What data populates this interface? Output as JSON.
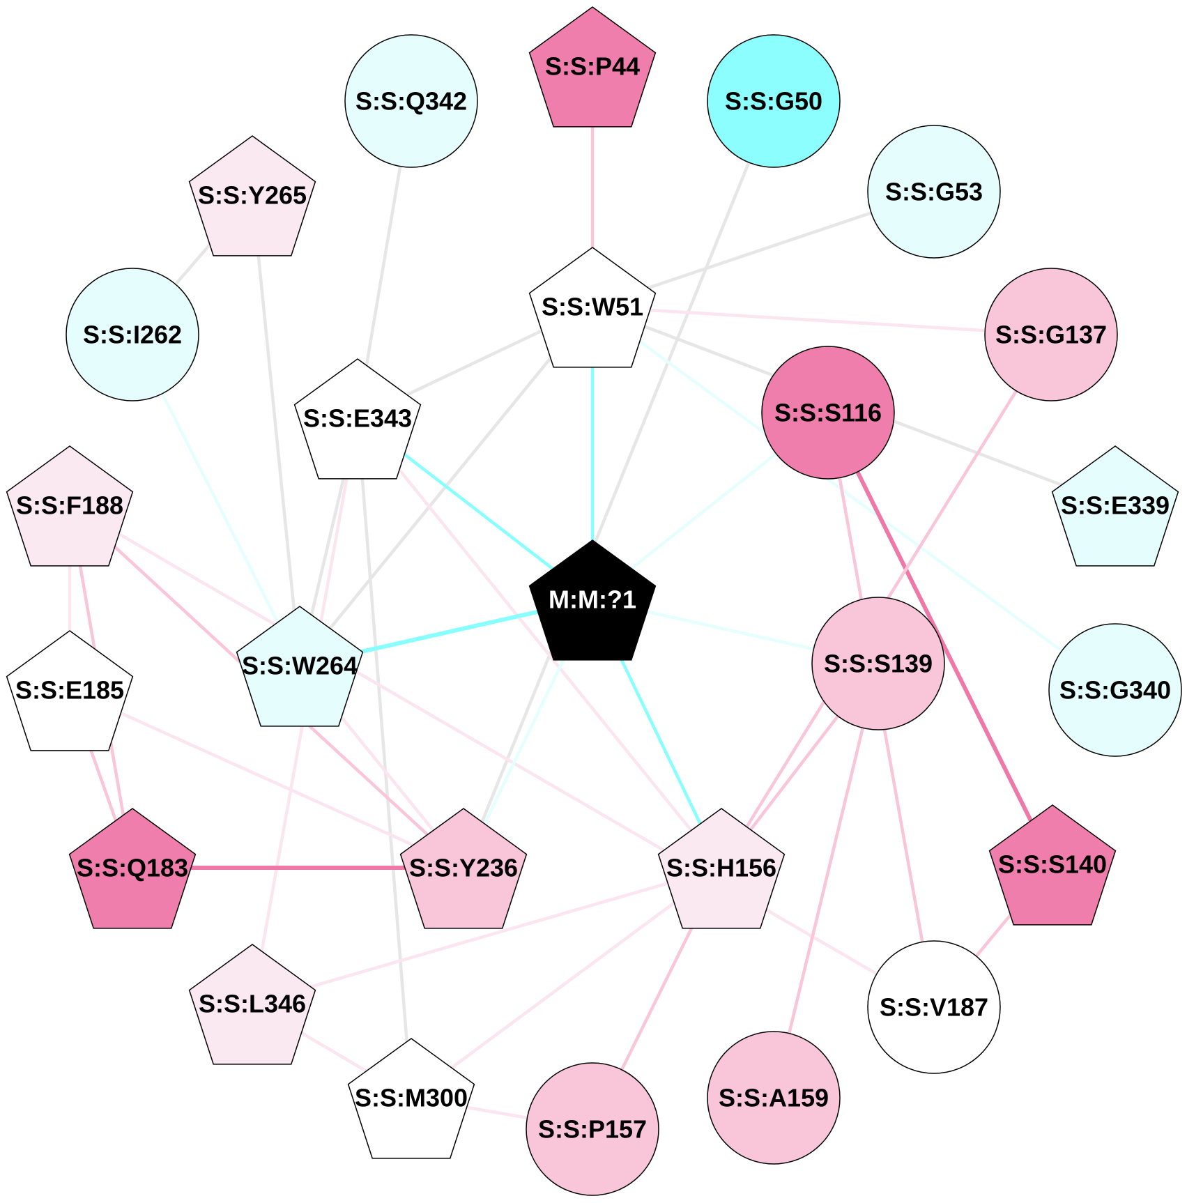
{
  "colors": {
    "edge_gray": "#e6e6e6",
    "edge_cyan": "#88feff",
    "edge_cyan_light": "#e5fefe",
    "edge_pink": "#f9c5d9",
    "edge_pink_light": "#fbe5ee",
    "edge_pink_strong": "#ee79a9",
    "node_stroke": "#000000"
  },
  "nodes": [
    {
      "id": "P44",
      "label": "S:S:P44",
      "shape": "pentagon",
      "fill": "#f07eac",
      "text": "#000000"
    },
    {
      "id": "Q342",
      "label": "S:S:Q342",
      "shape": "circle",
      "fill": "#e5fdfd",
      "text": "#000000"
    },
    {
      "id": "G50",
      "label": "S:S:G50",
      "shape": "circle",
      "fill": "#8dfefe",
      "text": "#000000"
    },
    {
      "id": "G53",
      "label": "S:S:G53",
      "shape": "circle",
      "fill": "#e5fdfd",
      "text": "#000000"
    },
    {
      "id": "Y265",
      "label": "S:S:Y265",
      "shape": "pentagon",
      "fill": "#fbe9f1",
      "text": "#000000"
    },
    {
      "id": "W51",
      "label": "S:S:W51",
      "shape": "pentagon",
      "fill": "#ffffff",
      "text": "#000000"
    },
    {
      "id": "I262",
      "label": "S:S:I262",
      "shape": "circle",
      "fill": "#e5fdfd",
      "text": "#000000"
    },
    {
      "id": "G137",
      "label": "S:S:G137",
      "shape": "circle",
      "fill": "#f9c5d9",
      "text": "#000000"
    },
    {
      "id": "E343",
      "label": "S:S:E343",
      "shape": "pentagon",
      "fill": "#ffffff",
      "text": "#000000"
    },
    {
      "id": "S116",
      "label": "S:S:S116",
      "shape": "circle",
      "fill": "#f07eac",
      "text": "#000000"
    },
    {
      "id": "F188",
      "label": "S:S:F188",
      "shape": "pentagon",
      "fill": "#fbe9f1",
      "text": "#000000"
    },
    {
      "id": "E339",
      "label": "S:S:E339",
      "shape": "pentagon",
      "fill": "#e5fdfd",
      "text": "#000000"
    },
    {
      "id": "M1",
      "label": "M:M:?1",
      "shape": "pentagon",
      "fill": "#000000",
      "text": "#ffffff"
    },
    {
      "id": "W264",
      "label": "S:S:W264",
      "shape": "pentagon",
      "fill": "#e5fdfd",
      "text": "#000000"
    },
    {
      "id": "E185",
      "label": "S:S:E185",
      "shape": "pentagon",
      "fill": "#ffffff",
      "text": "#000000"
    },
    {
      "id": "S139",
      "label": "S:S:S139",
      "shape": "circle",
      "fill": "#f9c5d9",
      "text": "#000000"
    },
    {
      "id": "G340",
      "label": "S:S:G340",
      "shape": "circle",
      "fill": "#e5fdfd",
      "text": "#000000"
    },
    {
      "id": "Q183",
      "label": "S:S:Q183",
      "shape": "pentagon",
      "fill": "#f07eac",
      "text": "#000000"
    },
    {
      "id": "Y236",
      "label": "S:S:Y236",
      "shape": "pentagon",
      "fill": "#f9c5d9",
      "text": "#000000"
    },
    {
      "id": "H156",
      "label": "S:S:H156",
      "shape": "pentagon",
      "fill": "#fbe9f1",
      "text": "#000000"
    },
    {
      "id": "S140",
      "label": "S:S:S140",
      "shape": "pentagon",
      "fill": "#f07eac",
      "text": "#000000"
    },
    {
      "id": "L346",
      "label": "S:S:L346",
      "shape": "pentagon",
      "fill": "#fbe9f1",
      "text": "#000000"
    },
    {
      "id": "V187",
      "label": "S:S:V187",
      "shape": "circle",
      "fill": "#ffffff",
      "text": "#000000"
    },
    {
      "id": "M300",
      "label": "S:S:M300",
      "shape": "pentagon",
      "fill": "#ffffff",
      "text": "#000000"
    },
    {
      "id": "P157",
      "label": "S:S:P157",
      "shape": "circle",
      "fill": "#f9c5d9",
      "text": "#000000"
    },
    {
      "id": "A159",
      "label": "S:S:A159",
      "shape": "circle",
      "fill": "#f9c5d9",
      "text": "#000000"
    }
  ],
  "edges": [
    {
      "source": "P44",
      "target": "W51",
      "color": "edge_pink",
      "weight": "medium"
    },
    {
      "source": "G50",
      "target": "Y236",
      "color": "edge_gray",
      "weight": "medium"
    },
    {
      "source": "G53",
      "target": "W51",
      "color": "edge_gray",
      "weight": "medium"
    },
    {
      "source": "Q342",
      "target": "E343",
      "color": "edge_gray",
      "weight": "medium"
    },
    {
      "source": "Y265",
      "target": "I262",
      "color": "edge_gray",
      "weight": "medium"
    },
    {
      "source": "Y265",
      "target": "W264",
      "color": "edge_gray",
      "weight": "medium"
    },
    {
      "source": "W51",
      "target": "E343",
      "color": "edge_gray",
      "weight": "medium"
    },
    {
      "source": "W51",
      "target": "W264",
      "color": "edge_gray",
      "weight": "medium"
    },
    {
      "source": "W51",
      "target": "G137",
      "color": "edge_pink_light",
      "weight": "medium"
    },
    {
      "source": "W51",
      "target": "E339",
      "color": "edge_gray",
      "weight": "medium"
    },
    {
      "source": "W51",
      "target": "M1",
      "color": "edge_cyan",
      "weight": "medium"
    },
    {
      "source": "W51",
      "target": "G340",
      "color": "edge_cyan_light",
      "weight": "medium"
    },
    {
      "source": "I262",
      "target": "W264",
      "color": "edge_cyan_light",
      "weight": "medium"
    },
    {
      "source": "E343",
      "target": "W264",
      "color": "edge_gray",
      "weight": "medium"
    },
    {
      "source": "E343",
      "target": "M1",
      "color": "edge_cyan",
      "weight": "medium"
    },
    {
      "source": "E343",
      "target": "M300",
      "color": "edge_gray",
      "weight": "medium"
    },
    {
      "source": "E343",
      "target": "H156",
      "color": "edge_pink_light",
      "weight": "medium"
    },
    {
      "source": "E343",
      "target": "L346",
      "color": "edge_pink_light",
      "weight": "medium"
    },
    {
      "source": "S116",
      "target": "M1",
      "color": "edge_cyan_light",
      "weight": "medium"
    },
    {
      "source": "S116",
      "target": "S140",
      "color": "edge_pink_strong",
      "weight": "strong"
    },
    {
      "source": "S116",
      "target": "V187",
      "color": "edge_pink",
      "weight": "medium"
    },
    {
      "source": "G137",
      "target": "H156",
      "color": "edge_pink",
      "weight": "medium"
    },
    {
      "source": "F188",
      "target": "E185",
      "color": "edge_pink_light",
      "weight": "medium"
    },
    {
      "source": "F188",
      "target": "Q183",
      "color": "edge_pink",
      "weight": "medium"
    },
    {
      "source": "F188",
      "target": "Y236",
      "color": "edge_pink",
      "weight": "medium"
    },
    {
      "source": "F188",
      "target": "V187",
      "color": "edge_pink_light",
      "weight": "medium"
    },
    {
      "source": "M1",
      "target": "W264",
      "color": "edge_cyan",
      "weight": "strong"
    },
    {
      "source": "M1",
      "target": "S139",
      "color": "edge_cyan_light",
      "weight": "medium"
    },
    {
      "source": "M1",
      "target": "H156",
      "color": "edge_cyan",
      "weight": "medium"
    },
    {
      "source": "M1",
      "target": "Y236",
      "color": "edge_cyan_light",
      "weight": "medium"
    },
    {
      "source": "W264",
      "target": "Y236",
      "color": "edge_pink_light",
      "weight": "medium"
    },
    {
      "source": "E185",
      "target": "Q183",
      "color": "edge_pink",
      "weight": "medium"
    },
    {
      "source": "E185",
      "target": "Y236",
      "color": "edge_pink_light",
      "weight": "medium"
    },
    {
      "source": "Q183",
      "target": "Y236",
      "color": "edge_pink_strong",
      "weight": "strong"
    },
    {
      "source": "S139",
      "target": "H156",
      "color": "edge_pink",
      "weight": "medium"
    },
    {
      "source": "S139",
      "target": "A159",
      "color": "edge_pink",
      "weight": "medium"
    },
    {
      "source": "H156",
      "target": "L346",
      "color": "edge_pink_light",
      "weight": "medium"
    },
    {
      "source": "H156",
      "target": "M300",
      "color": "edge_pink_light",
      "weight": "medium"
    },
    {
      "source": "H156",
      "target": "P157",
      "color": "edge_pink",
      "weight": "medium"
    },
    {
      "source": "S140",
      "target": "V187",
      "color": "edge_pink",
      "weight": "medium"
    },
    {
      "source": "L346",
      "target": "M300",
      "color": "edge_pink_light",
      "weight": "medium"
    },
    {
      "source": "M300",
      "target": "P157",
      "color": "edge_pink_light",
      "weight": "medium"
    }
  ]
}
